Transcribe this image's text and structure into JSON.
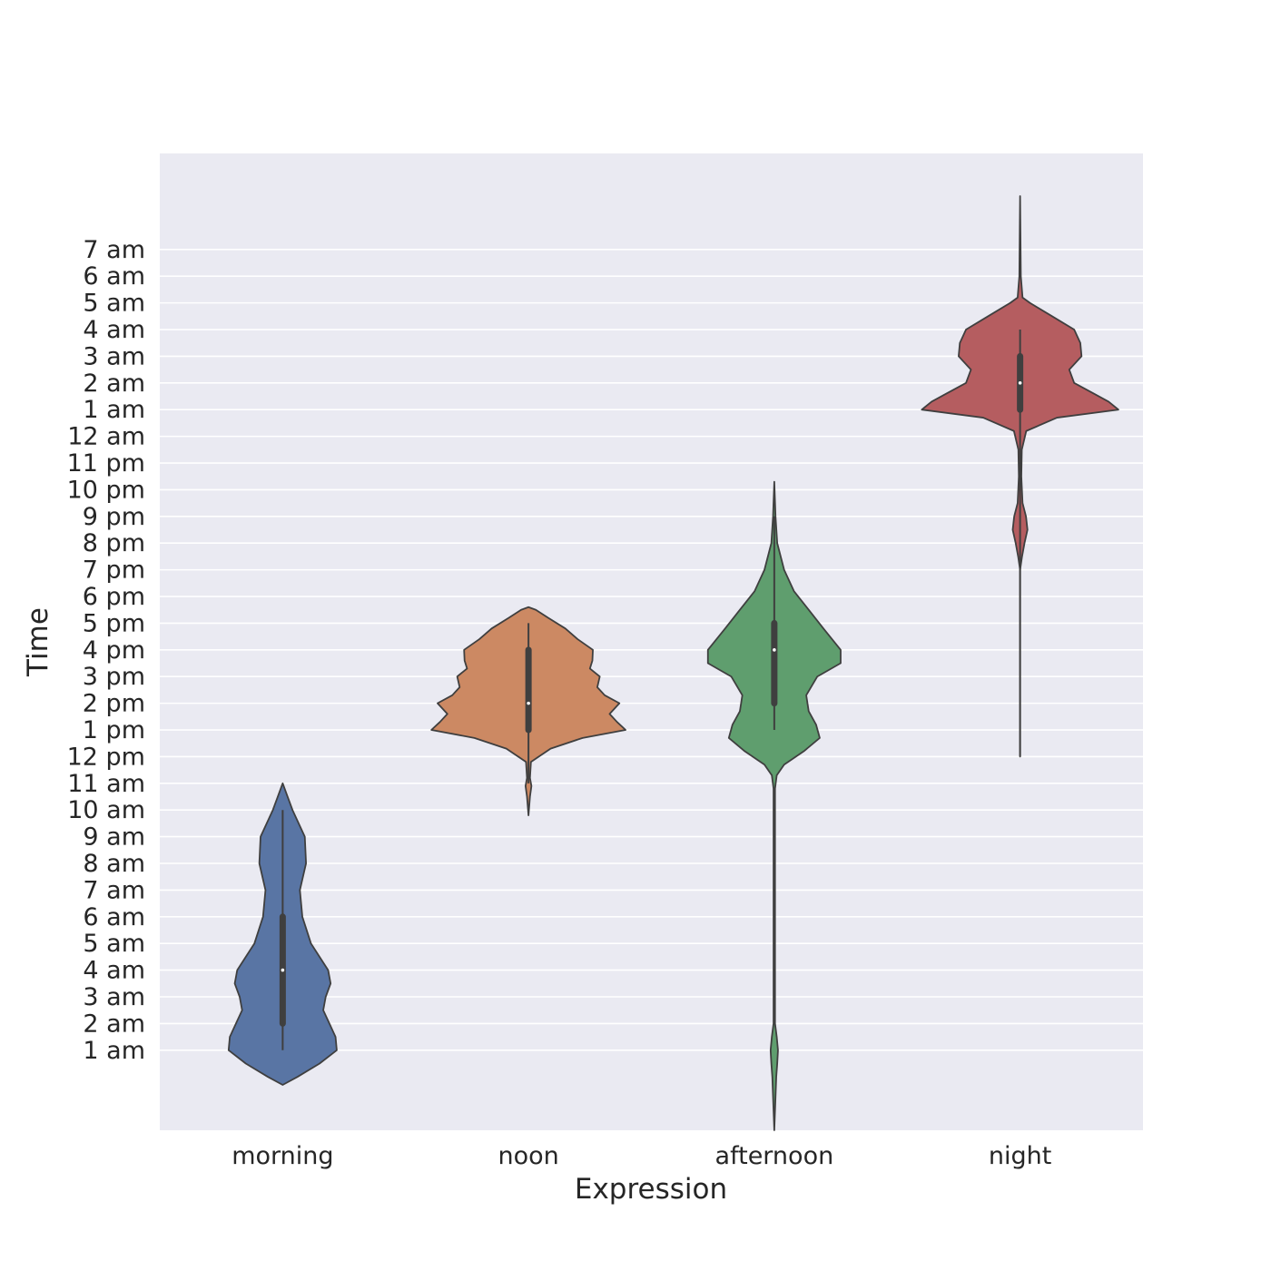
{
  "chart_data": {
    "type": "violin",
    "xlabel": "Expression",
    "ylabel": "Time",
    "categories": [
      "morning",
      "noon",
      "afternoon",
      "night"
    ],
    "y_ticks": [
      "1 am",
      "2 am",
      "3 am",
      "4 am",
      "5 am",
      "6 am",
      "7 am",
      "8 am",
      "9 am",
      "10 am",
      "11 am",
      "12 pm",
      "1 pm",
      "2 pm",
      "3 pm",
      "4 pm",
      "5 pm",
      "6 pm",
      "7 pm",
      "8 pm",
      "9 pm",
      "10 pm",
      "11 pm",
      "12 am",
      "1 am",
      "2 am",
      "3 am",
      "4 am",
      "5 am",
      "6 am",
      "7 am"
    ],
    "y_tick_values": [
      1,
      2,
      3,
      4,
      5,
      6,
      7,
      8,
      9,
      10,
      11,
      12,
      13,
      14,
      15,
      16,
      17,
      18,
      19,
      20,
      21,
      22,
      23,
      24,
      25,
      26,
      27,
      28,
      29,
      30,
      31
    ],
    "ylim": [
      -2.0,
      34.6
    ],
    "grid": true,
    "series": [
      {
        "category": "morning",
        "color": "#5975a4",
        "min": 1,
        "q1": 2,
        "median": 4,
        "q3": 6,
        "max": 10,
        "profile": [
          [
            -0.3,
            0.0
          ],
          [
            0.0,
            0.06
          ],
          [
            0.5,
            0.15
          ],
          [
            1.0,
            0.22
          ],
          [
            1.5,
            0.215
          ],
          [
            2.0,
            0.19
          ],
          [
            2.5,
            0.165
          ],
          [
            3.0,
            0.175
          ],
          [
            3.5,
            0.195
          ],
          [
            4.0,
            0.185
          ],
          [
            5.0,
            0.115
          ],
          [
            6.0,
            0.08
          ],
          [
            7.0,
            0.07
          ],
          [
            8.0,
            0.095
          ],
          [
            9.0,
            0.09
          ],
          [
            10.0,
            0.04
          ],
          [
            10.5,
            0.02
          ],
          [
            11.0,
            0.0
          ]
        ]
      },
      {
        "category": "noon",
        "color": "#cc8963",
        "min": 11,
        "q1": 13,
        "median": 14,
        "q3": 16,
        "max": 17,
        "profile": [
          [
            9.8,
            0.0
          ],
          [
            10.5,
            0.006
          ],
          [
            10.9,
            0.012
          ],
          [
            11.2,
            0.006
          ],
          [
            11.8,
            0.01
          ],
          [
            12.3,
            0.09
          ],
          [
            12.7,
            0.22
          ],
          [
            13.0,
            0.395
          ],
          [
            13.3,
            0.36
          ],
          [
            13.6,
            0.33
          ],
          [
            14.0,
            0.37
          ],
          [
            14.3,
            0.31
          ],
          [
            14.6,
            0.28
          ],
          [
            15.0,
            0.29
          ],
          [
            15.3,
            0.25
          ],
          [
            15.6,
            0.26
          ],
          [
            16.0,
            0.262
          ],
          [
            16.4,
            0.2
          ],
          [
            16.8,
            0.15
          ],
          [
            17.2,
            0.08
          ],
          [
            17.5,
            0.03
          ],
          [
            17.6,
            0.0
          ]
        ]
      },
      {
        "category": "afternoon",
        "color": "#5f9e6e",
        "min": 13,
        "q1": 14,
        "median": 16,
        "q3": 17,
        "max": 21,
        "profile": [
          [
            -2.0,
            0.0
          ],
          [
            0.0,
            0.008
          ],
          [
            0.5,
            0.012
          ],
          [
            1.0,
            0.015
          ],
          [
            1.5,
            0.01
          ],
          [
            2.0,
            0.003
          ],
          [
            3.0,
            0.003
          ],
          [
            10.8,
            0.003
          ],
          [
            11.3,
            0.01
          ],
          [
            11.7,
            0.04
          ],
          [
            12.2,
            0.12
          ],
          [
            12.7,
            0.185
          ],
          [
            13.2,
            0.17
          ],
          [
            13.7,
            0.14
          ],
          [
            14.3,
            0.13
          ],
          [
            15.0,
            0.175
          ],
          [
            15.5,
            0.27
          ],
          [
            16.0,
            0.27
          ],
          [
            16.8,
            0.2
          ],
          [
            17.5,
            0.14
          ],
          [
            18.2,
            0.08
          ],
          [
            19.0,
            0.04
          ],
          [
            20.0,
            0.012
          ],
          [
            21.0,
            0.005
          ],
          [
            22.3,
            0.0
          ]
        ]
      },
      {
        "category": "night",
        "color": "#b55d60",
        "min": 12,
        "q1": 25,
        "median": 26,
        "q3": 27,
        "max": 28,
        "profile": [
          [
            12.0,
            0.0
          ],
          [
            19.0,
            0.0
          ],
          [
            19.5,
            0.008
          ],
          [
            20.0,
            0.018
          ],
          [
            20.5,
            0.03
          ],
          [
            21.0,
            0.024
          ],
          [
            21.5,
            0.01
          ],
          [
            22.5,
            0.005
          ],
          [
            23.5,
            0.007
          ],
          [
            24.2,
            0.025
          ],
          [
            24.7,
            0.15
          ],
          [
            25.0,
            0.4
          ],
          [
            25.3,
            0.36
          ],
          [
            25.6,
            0.3
          ],
          [
            26.0,
            0.22
          ],
          [
            26.5,
            0.2
          ],
          [
            27.0,
            0.25
          ],
          [
            27.5,
            0.245
          ],
          [
            28.0,
            0.22
          ],
          [
            28.5,
            0.13
          ],
          [
            29.0,
            0.04
          ],
          [
            29.2,
            0.01
          ],
          [
            30.0,
            0.003
          ],
          [
            33.0,
            0.0
          ]
        ]
      }
    ]
  }
}
